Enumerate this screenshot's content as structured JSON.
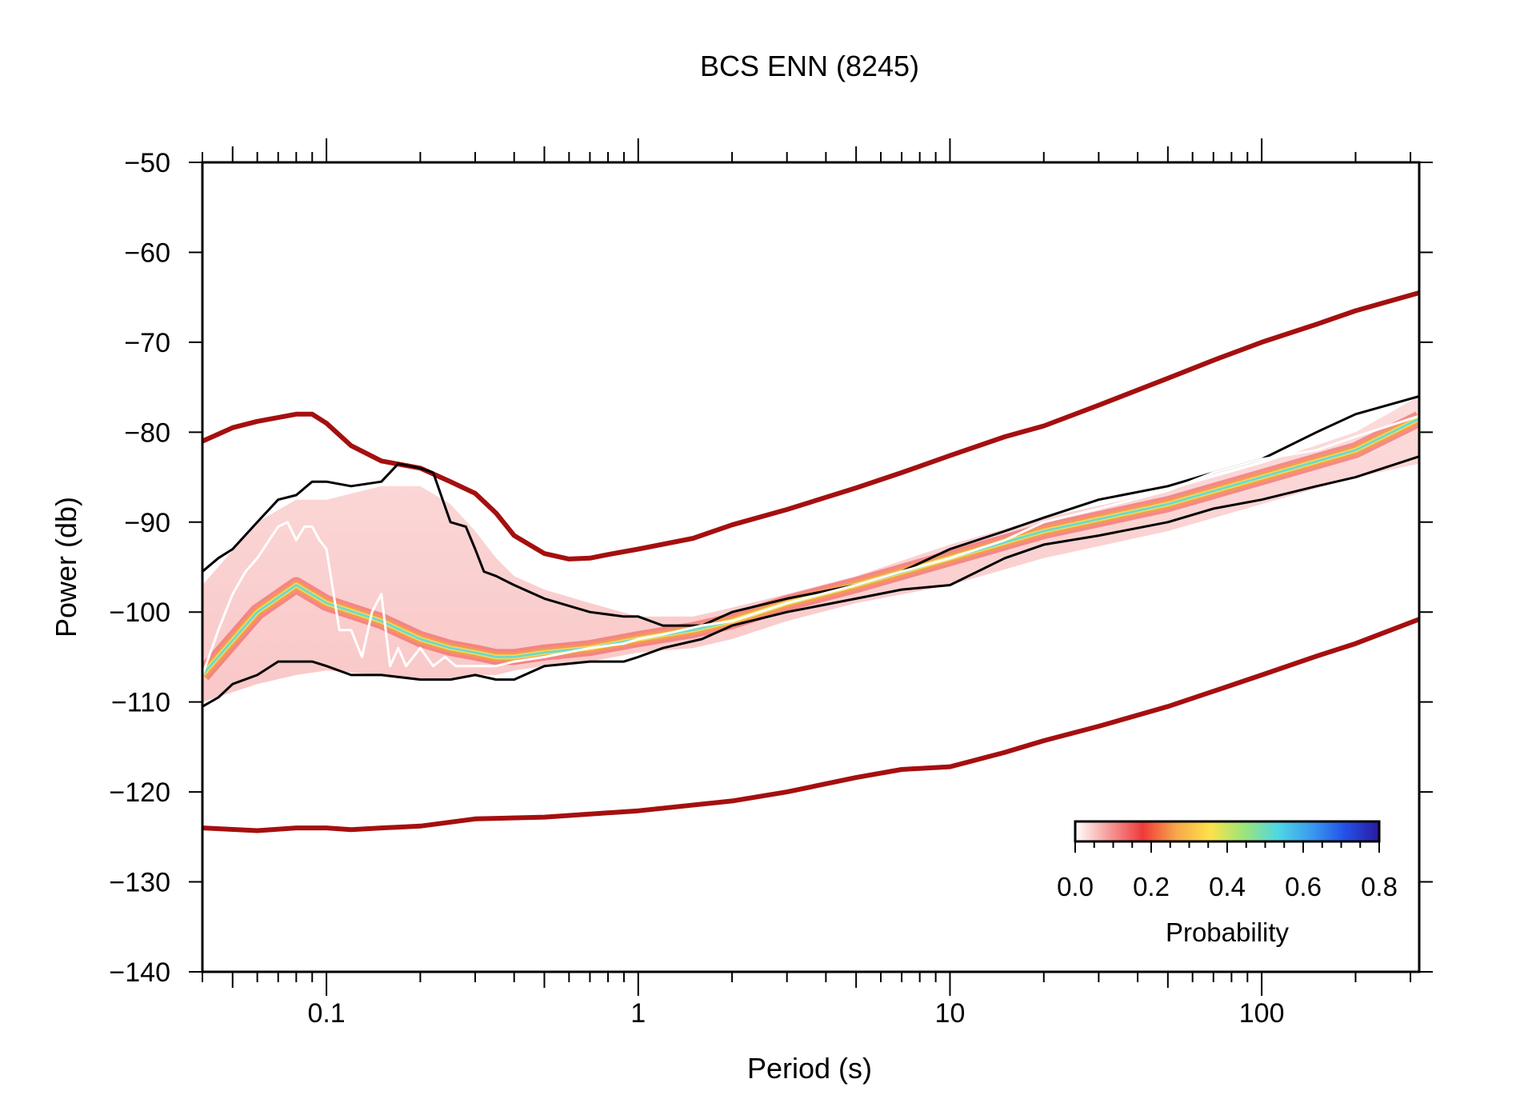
{
  "chart_data": {
    "type": "line",
    "title": "BCS ENN (8245)",
    "xlabel": "Period (s)",
    "ylabel": "Power (db)",
    "x_scale": "log",
    "xlim": [
      0.04,
      320
    ],
    "ylim": [
      -140,
      -50
    ],
    "x_ticks": [
      {
        "value": 0.1,
        "label": "0.1"
      },
      {
        "value": 1,
        "label": "1"
      },
      {
        "value": 10,
        "label": "10"
      },
      {
        "value": 100,
        "label": "100"
      }
    ],
    "y_ticks": [
      {
        "value": -50,
        "label": "−50"
      },
      {
        "value": -60,
        "label": "−60"
      },
      {
        "value": -70,
        "label": "−70"
      },
      {
        "value": -80,
        "label": "−80"
      },
      {
        "value": -90,
        "label": "−90"
      },
      {
        "value": -100,
        "label": "−100"
      },
      {
        "value": -110,
        "label": "−110"
      },
      {
        "value": -120,
        "label": "−120"
      },
      {
        "value": -130,
        "label": "−130"
      },
      {
        "value": -140,
        "label": "−140"
      }
    ],
    "grid": false,
    "series": [
      {
        "role": "new-high-noise-model",
        "color": "#a50f0f",
        "x": [
          0.04,
          0.05,
          0.06,
          0.08,
          0.09,
          0.1,
          0.12,
          0.15,
          0.2,
          0.25,
          0.3,
          0.35,
          0.4,
          0.5,
          0.6,
          0.7,
          0.8,
          1,
          1.5,
          2,
          3,
          5,
          7,
          10,
          15,
          20,
          30,
          50,
          70,
          100,
          150,
          200,
          320
        ],
        "y": [
          -81,
          -79.5,
          -78.8,
          -78,
          -78,
          -79,
          -81.5,
          -83.2,
          -84,
          -85.5,
          -86.8,
          -89,
          -91.5,
          -93.5,
          -94.1,
          -94,
          -93.6,
          -93,
          -91.8,
          -90.3,
          -88.6,
          -86.2,
          -84.5,
          -82.6,
          -80.5,
          -79.3,
          -77,
          -74,
          -72,
          -70,
          -68,
          -66.5,
          -64.5
        ]
      },
      {
        "role": "new-low-noise-model",
        "color": "#a50f0f",
        "x": [
          0.04,
          0.06,
          0.08,
          0.1,
          0.12,
          0.15,
          0.2,
          0.3,
          0.5,
          1,
          2,
          3,
          5,
          7,
          10,
          15,
          20,
          30,
          50,
          70,
          100,
          150,
          200,
          320
        ],
        "y": [
          -124,
          -124.3,
          -124,
          -124,
          -124.2,
          -124,
          -123.8,
          -123,
          -122.8,
          -122.1,
          -121,
          -120,
          -118.4,
          -117.5,
          -117.2,
          -115.6,
          -114.3,
          -112.7,
          -110.5,
          -108.8,
          -107,
          -104.9,
          -103.5,
          -100.8
        ]
      },
      {
        "role": "percentile-90",
        "color": "#000000",
        "x": [
          0.04,
          0.045,
          0.05,
          0.06,
          0.07,
          0.08,
          0.09,
          0.1,
          0.12,
          0.15,
          0.17,
          0.2,
          0.22,
          0.25,
          0.28,
          0.3,
          0.32,
          0.35,
          0.4,
          0.5,
          0.7,
          0.9,
          1.0,
          1.2,
          1.6,
          2,
          3,
          5,
          7,
          10,
          15,
          20,
          30,
          50,
          70,
          100,
          150,
          200,
          320
        ],
        "y": [
          -95.5,
          -94,
          -93,
          -90,
          -87.5,
          -87,
          -85.5,
          -85.5,
          -86,
          -85.5,
          -83.5,
          -84,
          -84.5,
          -90,
          -90.5,
          -93,
          -95.5,
          -96,
          -97,
          -98.5,
          -100,
          -100.5,
          -100.5,
          -101.5,
          -101.5,
          -100,
          -98.5,
          -97,
          -95.5,
          -93,
          -91,
          -89.5,
          -87.5,
          -86,
          -84.5,
          -83,
          -80,
          -78,
          -76
        ]
      },
      {
        "role": "percentile-10",
        "color": "#000000",
        "x": [
          0.04,
          0.045,
          0.05,
          0.06,
          0.07,
          0.08,
          0.09,
          0.1,
          0.12,
          0.15,
          0.2,
          0.25,
          0.3,
          0.35,
          0.4,
          0.5,
          0.7,
          0.9,
          1.0,
          1.2,
          1.6,
          2,
          3,
          5,
          7,
          10,
          15,
          20,
          30,
          50,
          70,
          100,
          150,
          200,
          320
        ],
        "y": [
          -110.5,
          -109.5,
          -108,
          -107,
          -105.5,
          -105.5,
          -105.5,
          -106,
          -107,
          -107,
          -107.5,
          -107.5,
          -107,
          -107.5,
          -107.5,
          -106,
          -105.5,
          -105.5,
          -105,
          -104,
          -103,
          -101.5,
          -100,
          -98.5,
          -97.5,
          -97,
          -94,
          -92.5,
          -91.5,
          -90,
          -88.5,
          -87.5,
          -86,
          -85,
          -82.7
        ]
      },
      {
        "role": "mode",
        "color": "#ffffff",
        "x": [
          0.04,
          0.045,
          0.05,
          0.055,
          0.06,
          0.07,
          0.075,
          0.08,
          0.085,
          0.09,
          0.095,
          0.1,
          0.11,
          0.12,
          0.13,
          0.14,
          0.15,
          0.16,
          0.17,
          0.18,
          0.2,
          0.22,
          0.24,
          0.26,
          0.3,
          0.35,
          0.4,
          0.5,
          0.7,
          0.9,
          1.0,
          1.2,
          1.6,
          2,
          3,
          5,
          7,
          10,
          15,
          20,
          30,
          50,
          70,
          100,
          150,
          200,
          320
        ],
        "y": [
          -107,
          -102,
          -98,
          -95.5,
          -94,
          -90.5,
          -90,
          -92,
          -90.5,
          -90.5,
          -92,
          -93,
          -102,
          -102,
          -105,
          -100,
          -98,
          -106,
          -104,
          -106,
          -104,
          -106,
          -105,
          -106,
          -106,
          -106,
          -105.5,
          -105,
          -104,
          -103.5,
          -103,
          -102.5,
          -101.5,
          -101,
          -99,
          -97,
          -95.5,
          -94,
          -92,
          -90,
          -88.5,
          -86.5,
          -84.5,
          -83,
          -82,
          -80.5,
          -78.2
        ]
      }
    ],
    "pdf_band": {
      "description": "probability density shading",
      "x": [
        0.04,
        0.06,
        0.08,
        0.1,
        0.15,
        0.2,
        0.25,
        0.3,
        0.35,
        0.4,
        0.5,
        0.7,
        1,
        1.5,
        2,
        3,
        5,
        10,
        20,
        50,
        100,
        200,
        320
      ],
      "upper": [
        -97,
        -90,
        -87.5,
        -87.5,
        -86,
        -86,
        -88,
        -91,
        -94,
        -96,
        -97.5,
        -99,
        -100.5,
        -100.5,
        -99.5,
        -98,
        -96,
        -92.5,
        -89.5,
        -86.5,
        -83.5,
        -80,
        -76
      ],
      "lower": [
        -110,
        -108,
        -107,
        -106.5,
        -107,
        -107.5,
        -107.5,
        -107,
        -107,
        -106.5,
        -106,
        -105.5,
        -104.5,
        -104,
        -103,
        -101,
        -99,
        -97,
        -94,
        -91,
        -88,
        -85,
        -83.5
      ],
      "core": [
        -107,
        -100,
        -97,
        -99,
        -101,
        -103,
        -104,
        -104.5,
        -105,
        -105,
        -104.5,
        -104,
        -103,
        -102,
        -101,
        -99,
        -97,
        -94,
        -91,
        -88,
        -85,
        -82,
        -78.5
      ]
    },
    "colorbar": {
      "label": "Probability",
      "min": 0.0,
      "max": 0.8,
      "ticks": [
        {
          "value": 0.0,
          "label": "0.0"
        },
        {
          "value": 0.2,
          "label": "0.2"
        },
        {
          "value": 0.4,
          "label": "0.4"
        },
        {
          "value": 0.6,
          "label": "0.6"
        },
        {
          "value": 0.8,
          "label": "0.8"
        }
      ],
      "colors": [
        "#ffffff",
        "#f79a9a",
        "#ee3a3a",
        "#f7a84a",
        "#fde24a",
        "#9be57a",
        "#4fd7e3",
        "#3a9af0",
        "#2450e8",
        "#2a1aa0"
      ]
    }
  }
}
